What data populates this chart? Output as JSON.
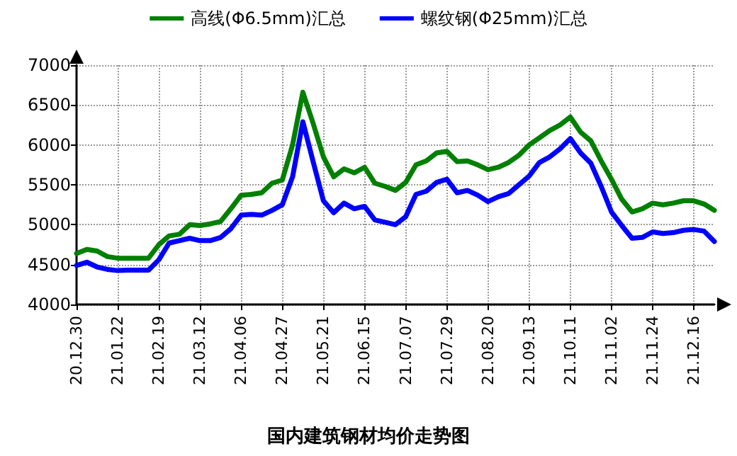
{
  "chart_data": {
    "type": "line",
    "title": "国内建筑钢材均价走势图",
    "categories": [
      "20.12.30",
      null,
      null,
      null,
      "21.01.22",
      null,
      null,
      null,
      "21.02.19",
      null,
      null,
      null,
      "21.03.12",
      null,
      null,
      null,
      "21.04.06",
      null,
      null,
      null,
      "21.04.27",
      null,
      null,
      null,
      "21.05.21",
      null,
      null,
      null,
      "21.06.15",
      null,
      null,
      null,
      "21.07.07",
      null,
      null,
      null,
      "21.07.29",
      null,
      null,
      null,
      "21.08.20",
      null,
      null,
      null,
      "21.09.13",
      null,
      null,
      null,
      "21.10.11",
      null,
      null,
      null,
      "21.11.02",
      null,
      null,
      null,
      "21.11.24",
      null,
      null,
      null,
      "21.12.16",
      null,
      null
    ],
    "series": [
      {
        "name": "高线(Φ6.5mm)汇总",
        "color": "#008000",
        "values": [
          4640,
          4690,
          4670,
          4600,
          4580,
          4580,
          4580,
          4580,
          4750,
          4860,
          4880,
          5000,
          4990,
          5010,
          5040,
          5200,
          5370,
          5380,
          5400,
          5520,
          5560,
          6000,
          6660,
          6270,
          5850,
          5600,
          5700,
          5650,
          5720,
          5520,
          5480,
          5430,
          5530,
          5750,
          5800,
          5900,
          5920,
          5790,
          5800,
          5750,
          5690,
          5720,
          5780,
          5870,
          6000,
          6090,
          6180,
          6250,
          6350,
          6160,
          6050,
          5800,
          5570,
          5320,
          5160,
          5200,
          5270,
          5250,
          5270,
          5300,
          5300,
          5260,
          5180
        ]
      },
      {
        "name": "螺纹钢(Φ25mm)汇总",
        "color": "#0000ff",
        "values": [
          4490,
          4530,
          4470,
          4440,
          4425,
          4430,
          4430,
          4430,
          4560,
          4770,
          4800,
          4830,
          4800,
          4800,
          4840,
          4950,
          5120,
          5130,
          5120,
          5180,
          5250,
          5600,
          6290,
          5790,
          5300,
          5150,
          5270,
          5200,
          5230,
          5060,
          5030,
          5000,
          5100,
          5380,
          5420,
          5530,
          5570,
          5400,
          5430,
          5370,
          5290,
          5350,
          5390,
          5500,
          5610,
          5780,
          5850,
          5950,
          6080,
          5900,
          5770,
          5480,
          5160,
          4990,
          4830,
          4840,
          4910,
          4890,
          4900,
          4930,
          4940,
          4920,
          4790
        ]
      }
    ],
    "ylim": [
      4000,
      7000
    ],
    "yticks": [
      4000,
      4500,
      5000,
      5500,
      6000,
      6500,
      7000
    ],
    "grid": true,
    "legend": "top",
    "marker": "none",
    "line_style": "solid"
  }
}
